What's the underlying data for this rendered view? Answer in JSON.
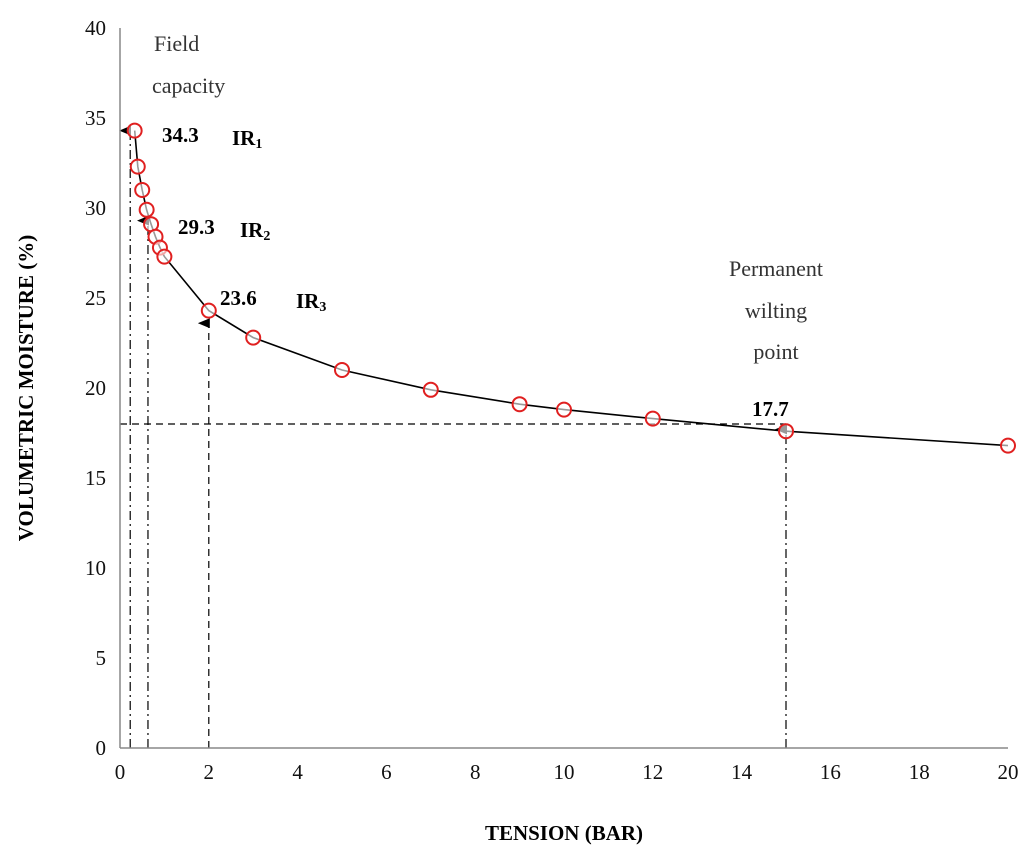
{
  "chart_data": {
    "type": "scatter",
    "xlabel": "TENSION (BAR)",
    "ylabel": "VOLUMETRIC MOISTURE (%)",
    "xlim": [
      0,
      20
    ],
    "ylim": [
      0,
      40
    ],
    "x_ticks": [
      0,
      2,
      4,
      6,
      8,
      10,
      12,
      14,
      16,
      18,
      20
    ],
    "y_ticks": [
      0,
      5,
      10,
      15,
      20,
      25,
      30,
      35,
      40
    ],
    "grid": false,
    "legend": "none",
    "marker_color": "#e02020",
    "curve_color": "#000000",
    "series": [
      {
        "x": [
          0.33,
          0.4,
          0.5,
          0.6,
          0.7,
          0.8,
          0.9,
          1.0,
          2,
          3,
          5,
          7,
          9,
          10,
          12,
          15,
          20
        ],
        "y": [
          34.3,
          32.3,
          31.0,
          29.9,
          29.1,
          28.4,
          27.8,
          27.3,
          24.3,
          22.8,
          21.0,
          19.9,
          19.1,
          18.8,
          18.3,
          17.6,
          16.8
        ]
      }
    ],
    "reference_lines": [
      {
        "x": 0.23,
        "y_max": 34.3,
        "style": "dash-dot",
        "arrow": true
      },
      {
        "x": 0.63,
        "y_max": 29.3,
        "style": "dash-dot",
        "arrow": true
      },
      {
        "x": 2,
        "y_max": 23.6,
        "style": "dashed",
        "arrow": true
      },
      {
        "x": 15,
        "y_max": 17.7,
        "style": "dash-dot",
        "arrow": true
      },
      {
        "y": 18.0,
        "x_min": 0,
        "x_max": 15,
        "style": "dashed"
      }
    ],
    "annotations": {
      "field_capacity": [
        "Field",
        "capacity"
      ],
      "wilting_point": [
        "Permanent",
        "wilting",
        "point"
      ],
      "values": [
        {
          "text": "34.3",
          "ir": "IR",
          "ir_sub": "1"
        },
        {
          "text": "29.3",
          "ir": "IR",
          "ir_sub": "2"
        },
        {
          "text": "23.6",
          "ir": "IR",
          "ir_sub": "3"
        },
        {
          "text": "17.7"
        }
      ]
    }
  }
}
